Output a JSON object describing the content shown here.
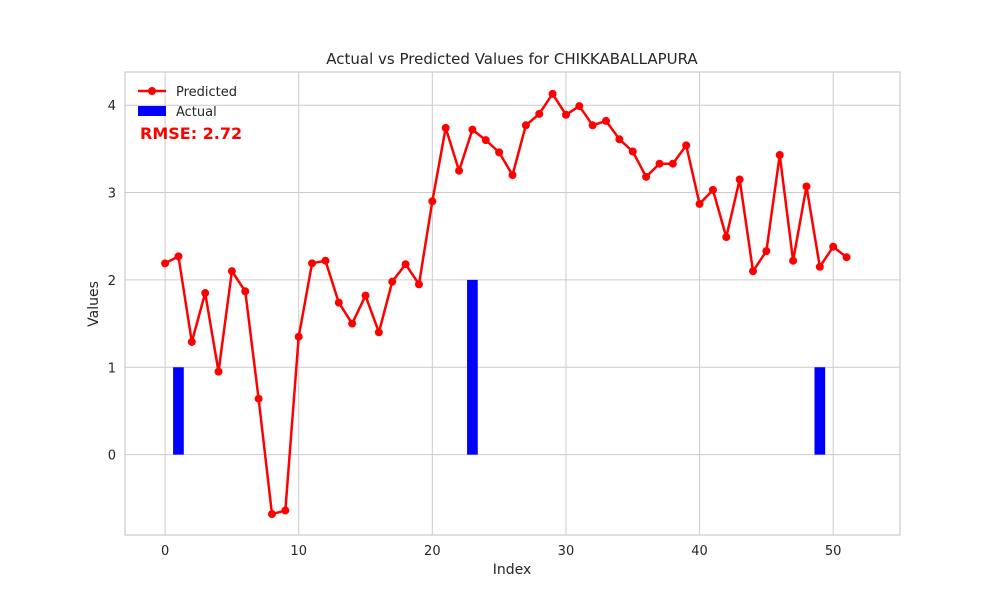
{
  "chart_data": {
    "type": "line",
    "title": "Actual vs Predicted Values for CHIKKABALLAPURA",
    "xlabel": "Index",
    "ylabel": "Values",
    "xlim": [
      -3,
      55
    ],
    "ylim": [
      -0.92,
      4.38
    ],
    "xticks": [
      0,
      10,
      20,
      30,
      40,
      50
    ],
    "yticks": [
      0,
      1,
      2,
      3,
      4
    ],
    "grid": true,
    "legend_position": "upper-left",
    "annotation": {
      "text": "RMSE: 2.72",
      "color": "#ff0000"
    },
    "series": [
      {
        "name": "Predicted",
        "type": "line",
        "color": "#ff0000",
        "marker": "circle",
        "x": [
          0,
          1,
          2,
          3,
          4,
          5,
          6,
          7,
          8,
          9,
          10,
          11,
          12,
          13,
          14,
          15,
          16,
          17,
          18,
          19,
          20,
          21,
          22,
          23,
          24,
          25,
          26,
          27,
          28,
          29,
          30,
          31,
          32,
          33,
          34,
          35,
          36,
          37,
          38,
          39,
          40,
          41,
          42,
          43,
          44,
          45,
          46,
          47,
          48,
          49,
          50,
          51
        ],
        "values": [
          2.19,
          2.27,
          1.29,
          1.85,
          0.95,
          2.1,
          1.87,
          0.64,
          -0.68,
          -0.64,
          1.35,
          2.19,
          2.22,
          1.74,
          1.5,
          1.82,
          1.4,
          1.98,
          2.18,
          1.95,
          2.9,
          3.74,
          3.25,
          3.72,
          3.6,
          3.46,
          3.2,
          3.77,
          3.9,
          4.13,
          3.89,
          3.99,
          3.77,
          3.82,
          3.61,
          3.47,
          3.18,
          3.33,
          3.33,
          3.54,
          2.87,
          3.03,
          2.49,
          3.15,
          2.1,
          2.33,
          3.43,
          2.22,
          3.07,
          2.15,
          2.38,
          2.26
        ]
      },
      {
        "name": "Actual",
        "type": "bar",
        "color": "#0000ff",
        "x": [
          1,
          23,
          49
        ],
        "values": [
          1,
          2,
          1
        ]
      }
    ]
  }
}
